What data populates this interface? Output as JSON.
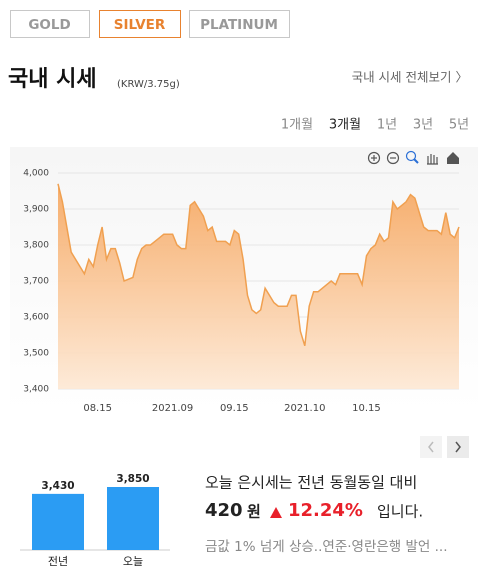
{
  "tabs": [
    {
      "label": "GOLD",
      "active": false
    },
    {
      "label": "SILVER",
      "active": true
    },
    {
      "label": "PLATINUM",
      "active": false
    }
  ],
  "header": {
    "title": "국내 시세",
    "unit": "(KRW/3.75g)",
    "link": "국내 시세 전체보기 〉"
  },
  "periods": [
    {
      "label": "1개월",
      "active": false
    },
    {
      "label": "3개월",
      "active": true
    },
    {
      "label": "1년",
      "active": false
    },
    {
      "label": "3년",
      "active": false
    },
    {
      "label": "5년",
      "active": false
    }
  ],
  "chart_data": [
    {
      "type": "area",
      "color": "#f0a050",
      "grid": true,
      "ylim": [
        3400,
        4000
      ],
      "yticks": [
        {
          "value": 3400,
          "label": "3,400"
        },
        {
          "value": 3500,
          "label": "3,500"
        },
        {
          "value": 3600,
          "label": "3,600"
        },
        {
          "value": 3700,
          "label": "3,700"
        },
        {
          "value": 3800,
          "label": "3,800"
        },
        {
          "value": 3900,
          "label": "3,900"
        },
        {
          "value": 4000,
          "label": "4,000"
        }
      ],
      "categories": [
        null,
        null,
        null,
        null,
        null,
        null,
        null,
        null,
        null,
        "08.15",
        null,
        null,
        null,
        null,
        null,
        null,
        null,
        null,
        null,
        null,
        null,
        null,
        null,
        null,
        null,
        null,
        "2021.09",
        null,
        null,
        null,
        null,
        null,
        null,
        null,
        null,
        null,
        null,
        null,
        null,
        null,
        "09.15",
        null,
        null,
        null,
        null,
        null,
        null,
        null,
        null,
        null,
        null,
        null,
        null,
        null,
        null,
        null,
        "2021.10",
        null,
        null,
        null,
        null,
        null,
        null,
        null,
        null,
        null,
        null,
        null,
        null,
        null,
        "10.15",
        null,
        null,
        null,
        null,
        null,
        null,
        null,
        null,
        null,
        null,
        null,
        null,
        null,
        null,
        null,
        null,
        null,
        null,
        null,
        null,
        null
      ],
      "values": [
        3970,
        3920,
        3850,
        3780,
        3760,
        3740,
        3720,
        3760,
        3740,
        3800,
        3850,
        3760,
        3790,
        3790,
        3750,
        3700,
        3705,
        3710,
        3760,
        3790,
        3800,
        3800,
        3810,
        3820,
        3830,
        3830,
        3830,
        3800,
        3790,
        3790,
        3910,
        3920,
        3900,
        3880,
        3840,
        3850,
        3810,
        3810,
        3810,
        3800,
        3840,
        3830,
        3760,
        3660,
        3620,
        3610,
        3620,
        3680,
        3660,
        3640,
        3630,
        3630,
        3630,
        3660,
        3660,
        3560,
        3520,
        3630,
        3670,
        3670,
        3680,
        3690,
        3700,
        3690,
        3720,
        3720,
        3720,
        3720,
        3720,
        3690,
        3770,
        3790,
        3800,
        3830,
        3810,
        3820,
        3920,
        3900,
        3910,
        3920,
        3940,
        3930,
        3890,
        3850,
        3840,
        3840,
        3840,
        3830,
        3890,
        3830,
        3820,
        3850
      ]
    },
    {
      "type": "bar",
      "color": "#2b9cf3",
      "categories": [
        "전년",
        "오늘"
      ],
      "values": [
        3430,
        3850
      ],
      "value_labels": [
        "3,430",
        "3,850"
      ]
    }
  ],
  "summary": {
    "lead": "오늘 은시세는 전년 동월동일 대비",
    "amount": "420",
    "amount_unit": "원",
    "percent": "12.24%",
    "tail": "입니다.",
    "news": "금값 1% 넘게 상승..연준·영란은행 발언 ..."
  }
}
